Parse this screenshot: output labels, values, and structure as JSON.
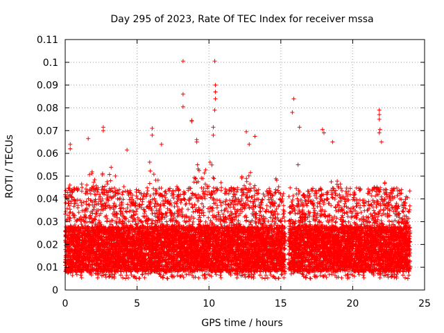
{
  "chart_data": {
    "type": "scatter",
    "title": "Day 295 of 2023, Rate Of TEC Index for receiver mssa",
    "xlabel": "GPS time / hours",
    "ylabel": "ROTI / TECUs",
    "xlim": [
      0,
      25
    ],
    "ylim": [
      0,
      0.11
    ],
    "x_ticks": [
      "0",
      "5",
      "10",
      "15",
      "20",
      "25"
    ],
    "y_ticks": [
      "0",
      "0.01",
      "0.02",
      "0.03",
      "0.04",
      "0.05",
      "0.06",
      "0.07",
      "0.08",
      "0.09",
      "0.1",
      "0.11"
    ],
    "grid": true,
    "marker": "+",
    "series_color": "#ff0000",
    "series": [
      {
        "name": "ROTI",
        "sampling_hours": 0.0083,
        "data_start_hours": 0.0,
        "data_end_hours": 24.0,
        "gap_hours": [
          15.3,
          15.55
        ],
        "typical_range": [
          0.005,
          0.045
        ],
        "envelope_upper": [
          [
            0,
            0.045
          ],
          [
            0.5,
            0.05
          ],
          [
            1,
            0.045
          ],
          [
            1.6,
            0.055
          ],
          [
            2.4,
            0.05
          ],
          [
            3.2,
            0.055
          ],
          [
            3.8,
            0.055
          ],
          [
            4.4,
            0.045
          ],
          [
            5.2,
            0.04
          ],
          [
            6,
            0.06
          ],
          [
            6.6,
            0.05
          ],
          [
            7.2,
            0.04
          ],
          [
            8,
            0.05
          ],
          [
            8.8,
            0.045
          ],
          [
            9.2,
            0.055
          ],
          [
            10,
            0.06
          ],
          [
            10.6,
            0.05
          ],
          [
            11.2,
            0.045
          ],
          [
            12,
            0.045
          ],
          [
            12.6,
            0.055
          ],
          [
            13.2,
            0.05
          ],
          [
            14,
            0.045
          ],
          [
            14.8,
            0.05
          ],
          [
            15.3,
            0.04
          ],
          [
            16,
            0.04
          ],
          [
            16.8,
            0.045
          ],
          [
            17.6,
            0.045
          ],
          [
            18.6,
            0.05
          ],
          [
            19.4,
            0.045
          ],
          [
            20.2,
            0.04
          ],
          [
            21,
            0.04
          ],
          [
            21.8,
            0.05
          ],
          [
            22.6,
            0.045
          ],
          [
            23.4,
            0.045
          ],
          [
            24,
            0.045
          ]
        ],
        "notable_points": [
          [
            0.35,
            0.064
          ],
          [
            0.35,
            0.062
          ],
          [
            1.6,
            0.0665
          ],
          [
            2.65,
            0.0715
          ],
          [
            2.65,
            0.07
          ],
          [
            4.3,
            0.0615
          ],
          [
            6.05,
            0.071
          ],
          [
            6.05,
            0.068
          ],
          [
            6.7,
            0.064
          ],
          [
            8.2,
            0.1005
          ],
          [
            8.2,
            0.086
          ],
          [
            8.2,
            0.0805
          ],
          [
            8.8,
            0.0745
          ],
          [
            8.8,
            0.074
          ],
          [
            9.15,
            0.066
          ],
          [
            9.15,
            0.065
          ],
          [
            10.4,
            0.1005
          ],
          [
            10.45,
            0.09
          ],
          [
            10.45,
            0.087
          ],
          [
            10.45,
            0.084
          ],
          [
            10.4,
            0.079
          ],
          [
            10.3,
            0.0715
          ],
          [
            10.3,
            0.068
          ],
          [
            12.6,
            0.0695
          ],
          [
            12.8,
            0.064
          ],
          [
            13.2,
            0.0675
          ],
          [
            15.9,
            0.084
          ],
          [
            15.8,
            0.078
          ],
          [
            16.3,
            0.0715
          ],
          [
            16.2,
            0.055
          ],
          [
            17.9,
            0.0705
          ],
          [
            18.0,
            0.069
          ],
          [
            18.6,
            0.065
          ],
          [
            21.85,
            0.079
          ],
          [
            21.85,
            0.077
          ],
          [
            21.85,
            0.075
          ],
          [
            21.9,
            0.0705
          ],
          [
            21.85,
            0.069
          ],
          [
            22.0,
            0.065
          ]
        ]
      }
    ]
  }
}
